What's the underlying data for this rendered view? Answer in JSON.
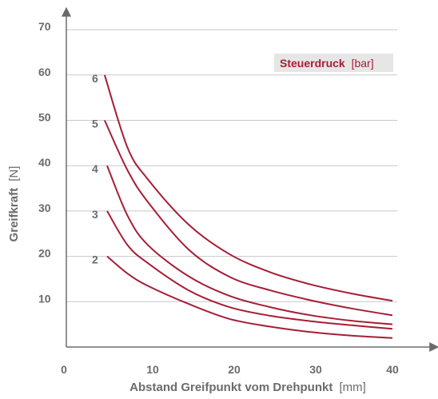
{
  "chart_data": {
    "type": "line",
    "xlabel": {
      "bold": "Abstand Greifpunkt vom Drehpunkt",
      "unit": "[mm]"
    },
    "ylabel": {
      "bold": "Greifkraft",
      "unit": "[N]"
    },
    "legend": {
      "bold": "Steuerdruck",
      "unit": "[bar]",
      "placement": "top-right"
    },
    "xlim": [
      0,
      45
    ],
    "ylim": [
      0,
      75
    ],
    "xticks": [
      0,
      10,
      20,
      30,
      40
    ],
    "yticks": [
      10,
      20,
      30,
      40,
      50,
      60,
      70
    ],
    "grid": "horizontal",
    "series": [
      {
        "name": "2",
        "x": [
          5,
          7.5,
          10,
          15,
          20,
          25,
          30,
          35,
          40
        ],
        "y": [
          20,
          16.2,
          13.5,
          9.5,
          6.2,
          4.5,
          3.3,
          2.5,
          2.0
        ]
      },
      {
        "name": "3",
        "x": [
          5,
          7.5,
          10,
          15,
          20,
          25,
          30,
          35,
          40
        ],
        "y": [
          30,
          22.5,
          18.5,
          12.5,
          8.8,
          6.9,
          5.7,
          4.8,
          4.0
        ]
      },
      {
        "name": "4",
        "x": [
          5,
          7.5,
          10,
          15,
          20,
          25,
          30,
          35,
          40
        ],
        "y": [
          40,
          29,
          22.5,
          15.6,
          11.3,
          8.8,
          7.0,
          5.8,
          5.0
        ]
      },
      {
        "name": "5",
        "x": [
          4.7,
          7.5,
          10,
          15,
          20,
          25,
          30,
          35,
          40
        ],
        "y": [
          50,
          39,
          32,
          21.5,
          15.5,
          12.5,
          10.3,
          8.5,
          7.0
        ]
      },
      {
        "name": "6",
        "x": [
          4.7,
          7.5,
          10,
          15,
          20,
          25,
          30,
          35,
          40
        ],
        "y": [
          60,
          44,
          37,
          27,
          20.5,
          16.5,
          13.8,
          11.8,
          10.2
        ]
      }
    ],
    "colors": {
      "curve": "#a51e36",
      "legend_bg": "#e6e6e6",
      "grid": "#c8c8c8",
      "axis": "#6b6b6b"
    }
  }
}
